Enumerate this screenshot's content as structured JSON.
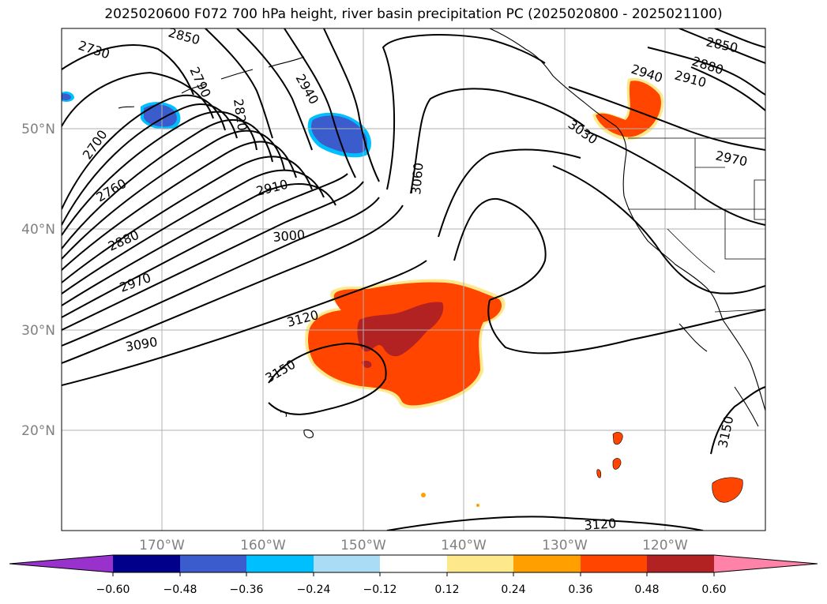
{
  "title": "2025020600 F072 700 hPa height, river basin precipitation PC (2025020800 - 2025021100)",
  "lat_labels": [
    "50°N",
    "40°N",
    "30°N",
    "20°N"
  ],
  "lon_labels": [
    "170°W",
    "160°W",
    "150°W",
    "140°W",
    "130°W",
    "120°W"
  ],
  "contour_labels": [
    "2730",
    "2850",
    "2790",
    "2820",
    "2940",
    "2700",
    "2760",
    "2880",
    "2910",
    "2970",
    "3000",
    "3060",
    "3030",
    "3090",
    "3120",
    "3150",
    "2850",
    "2880",
    "2910",
    "2940",
    "2970",
    "3150",
    "3120"
  ],
  "colorbar": {
    "colors": [
      "#9932cc",
      "#00008b",
      "#3a5ccc",
      "#00bfff",
      "#aadcf5",
      "#ffffff",
      "#fde98b",
      "#ff9f00",
      "#ff4500",
      "#b22222",
      "#ff82a9"
    ],
    "tick_labels": [
      "−0.60",
      "−0.48",
      "−0.36",
      "−0.24",
      "−0.12",
      "0.12",
      "0.24",
      "0.36",
      "0.48",
      "0.60"
    ]
  }
}
